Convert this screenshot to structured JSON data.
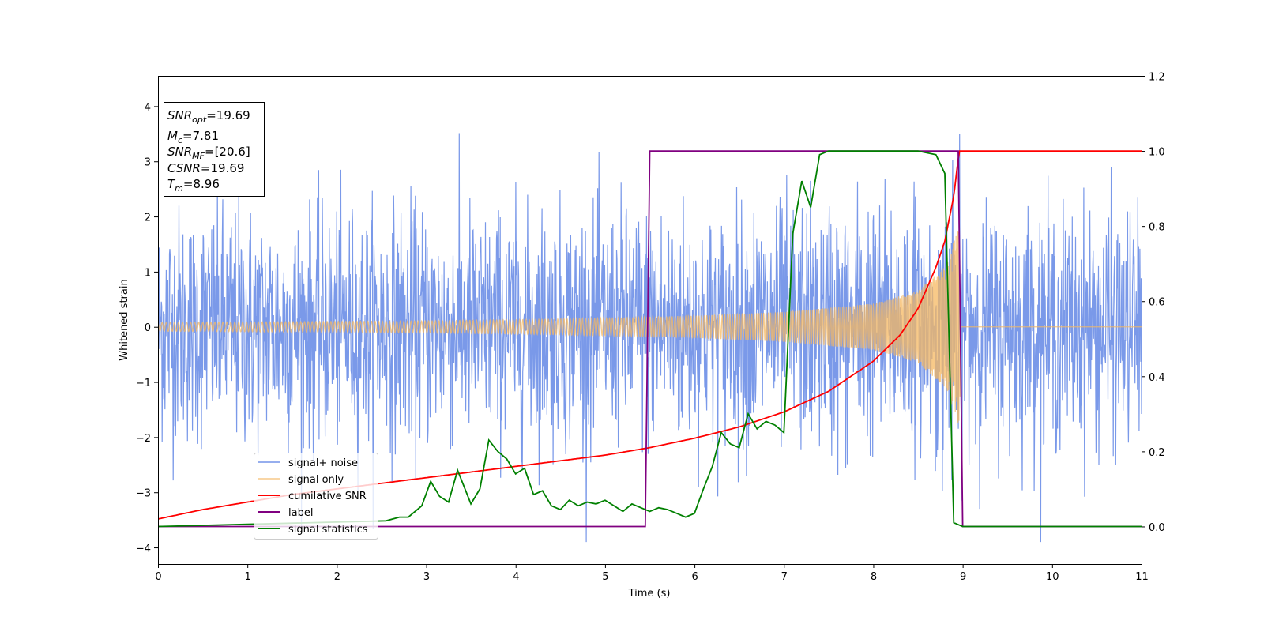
{
  "chart_data": {
    "type": "line",
    "xlabel": "Time (s)",
    "ylabel": "Whitened strain",
    "xlim": [
      0,
      11
    ],
    "ylim": [
      -4.3,
      4.55
    ],
    "y2lim": [
      -0.1,
      1.2
    ],
    "xticks": [
      0,
      1,
      2,
      3,
      4,
      5,
      6,
      7,
      8,
      9,
      10,
      11
    ],
    "yticks": [
      -4,
      -3,
      -2,
      -1,
      0,
      1,
      2,
      3,
      4
    ],
    "y2ticks": [
      "0.0",
      "0.2",
      "0.4",
      "0.6",
      "0.8",
      "1.0",
      "1.2"
    ],
    "grid": false,
    "legend_position": "lower-left",
    "info_box": {
      "position": "top-left",
      "lines": [
        {
          "main": "SNR",
          "sub": "opt",
          "value": "=19.69"
        },
        {
          "main": "M",
          "sub": "c",
          "value": "=7.81"
        },
        {
          "main": "SNR",
          "sub": "MF",
          "value": "=[20.6]"
        },
        {
          "main": "CSNR",
          "sub": "",
          "value": "=19.69"
        },
        {
          "main": "T",
          "sub": "m",
          "value": "=8.96"
        }
      ]
    },
    "series": [
      {
        "name": "signal+ noise",
        "color": "#7393e8",
        "axis": "left",
        "description_values": {
          "noise_sigma": 1.0,
          "max": 4.17,
          "min": -3.9
        }
      },
      {
        "name": "signal only",
        "color": "#f5b861",
        "axis": "left",
        "envelope": {
          "x": [
            0,
            1,
            2,
            3,
            4,
            5,
            6,
            7,
            8,
            8.5,
            8.8,
            8.96,
            9.0,
            11
          ],
          "amplitude": [
            0.08,
            0.09,
            0.1,
            0.11,
            0.13,
            0.16,
            0.2,
            0.27,
            0.42,
            0.65,
            1.1,
            1.8,
            0,
            0
          ]
        }
      },
      {
        "name": "cumilative SNR",
        "color": "#ff0000",
        "axis": "right",
        "x": [
          0,
          0.5,
          1,
          1.5,
          2,
          2.5,
          3,
          3.5,
          4,
          4.5,
          5,
          5.5,
          6,
          6.5,
          7,
          7.5,
          8,
          8.3,
          8.5,
          8.7,
          8.8,
          8.9,
          8.96,
          9.0,
          11
        ],
        "y": [
          0.02,
          0.045,
          0.065,
          0.085,
          0.1,
          0.115,
          0.13,
          0.145,
          0.16,
          0.175,
          0.19,
          0.21,
          0.235,
          0.265,
          0.305,
          0.36,
          0.44,
          0.51,
          0.58,
          0.69,
          0.76,
          0.88,
          1.0,
          1.0,
          1.0
        ]
      },
      {
        "name": "label",
        "color": "#800080",
        "axis": "right",
        "x": [
          0,
          5.45,
          5.5,
          8.95,
          9.0,
          11
        ],
        "y": [
          0,
          0,
          1,
          1,
          0,
          0
        ]
      },
      {
        "name": "signal statistics",
        "color": "#008000",
        "axis": "right",
        "x": [
          0,
          2.55,
          2.7,
          2.8,
          2.95,
          3.05,
          3.15,
          3.25,
          3.35,
          3.5,
          3.6,
          3.7,
          3.8,
          3.9,
          4.0,
          4.1,
          4.2,
          4.3,
          4.4,
          4.5,
          4.6,
          4.7,
          4.8,
          4.9,
          5.0,
          5.1,
          5.2,
          5.3,
          5.4,
          5.5,
          5.6,
          5.7,
          5.8,
          5.9,
          6.0,
          6.1,
          6.2,
          6.3,
          6.4,
          6.5,
          6.6,
          6.7,
          6.8,
          6.9,
          7.0,
          7.1,
          7.2,
          7.3,
          7.4,
          7.5,
          7.6,
          7.8,
          8.0,
          8.3,
          8.5,
          8.7,
          8.8,
          8.9,
          9.0,
          11
        ],
        "y": [
          0.0,
          0.015,
          0.025,
          0.025,
          0.055,
          0.12,
          0.08,
          0.065,
          0.15,
          0.06,
          0.1,
          0.23,
          0.2,
          0.18,
          0.14,
          0.155,
          0.085,
          0.095,
          0.055,
          0.045,
          0.07,
          0.055,
          0.065,
          0.06,
          0.07,
          0.055,
          0.04,
          0.06,
          0.05,
          0.04,
          0.05,
          0.045,
          0.035,
          0.025,
          0.035,
          0.1,
          0.16,
          0.25,
          0.22,
          0.21,
          0.3,
          0.26,
          0.28,
          0.27,
          0.25,
          0.78,
          0.92,
          0.85,
          0.99,
          1.0,
          1.0,
          1.0,
          1.0,
          1.0,
          1.0,
          0.99,
          0.94,
          0.01,
          0.0,
          0.0
        ]
      }
    ]
  }
}
